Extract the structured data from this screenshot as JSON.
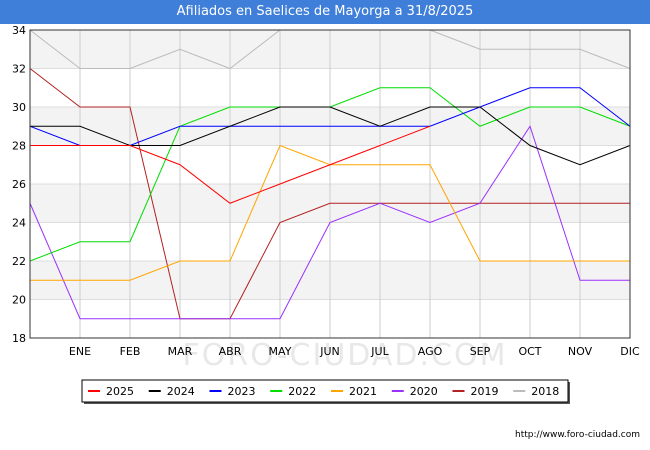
{
  "title": "Afiliados en Saelices de Mayorga a 31/8/2025",
  "source": "http://www.foro-ciudad.com",
  "watermark": "FORO-CIUDAD.COM",
  "chart_data": {
    "type": "line",
    "title": "Afiliados en Saelices de Mayorga a 31/8/2025",
    "x": [
      "",
      "ENE",
      "FEB",
      "MAR",
      "ABR",
      "MAY",
      "JUN",
      "JUL",
      "AGO",
      "SEP",
      "OCT",
      "NOV",
      "DIC"
    ],
    "ylim": [
      18,
      34
    ],
    "yticks": [
      18,
      20,
      22,
      24,
      26,
      28,
      30,
      32,
      34
    ],
    "grid": true,
    "legend_position": "bottom",
    "series": [
      {
        "name": "2025",
        "color": "#ff0000",
        "values": [
          28,
          28,
          28,
          27,
          25,
          26,
          27,
          28,
          29,
          null,
          null,
          null,
          null
        ]
      },
      {
        "name": "2024",
        "color": "#000000",
        "values": [
          29,
          29,
          28,
          28,
          29,
          30,
          30,
          29,
          30,
          30,
          28,
          27,
          28
        ]
      },
      {
        "name": "2023",
        "color": "#0000ff",
        "values": [
          29,
          28,
          28,
          29,
          29,
          29,
          29,
          29,
          29,
          30,
          31,
          31,
          29
        ]
      },
      {
        "name": "2022",
        "color": "#00dd00",
        "values": [
          22,
          23,
          23,
          29,
          30,
          30,
          30,
          31,
          31,
          29,
          30,
          30,
          29
        ]
      },
      {
        "name": "2021",
        "color": "#ffa500",
        "values": [
          21,
          21,
          21,
          22,
          22,
          28,
          27,
          27,
          27,
          22,
          22,
          22,
          22
        ]
      },
      {
        "name": "2020",
        "color": "#9b30ff",
        "values": [
          25,
          19,
          19,
          19,
          19,
          19,
          24,
          25,
          24,
          25,
          29,
          21,
          21
        ]
      },
      {
        "name": "2019",
        "color": "#b22222",
        "values": [
          32,
          30,
          30,
          19,
          19,
          24,
          25,
          25,
          25,
          25,
          25,
          25,
          25
        ]
      },
      {
        "name": "2018",
        "color": "#bbbbbb",
        "values": [
          34,
          32,
          32,
          33,
          32,
          34,
          34,
          34,
          34,
          33,
          33,
          33,
          32
        ]
      }
    ]
  }
}
